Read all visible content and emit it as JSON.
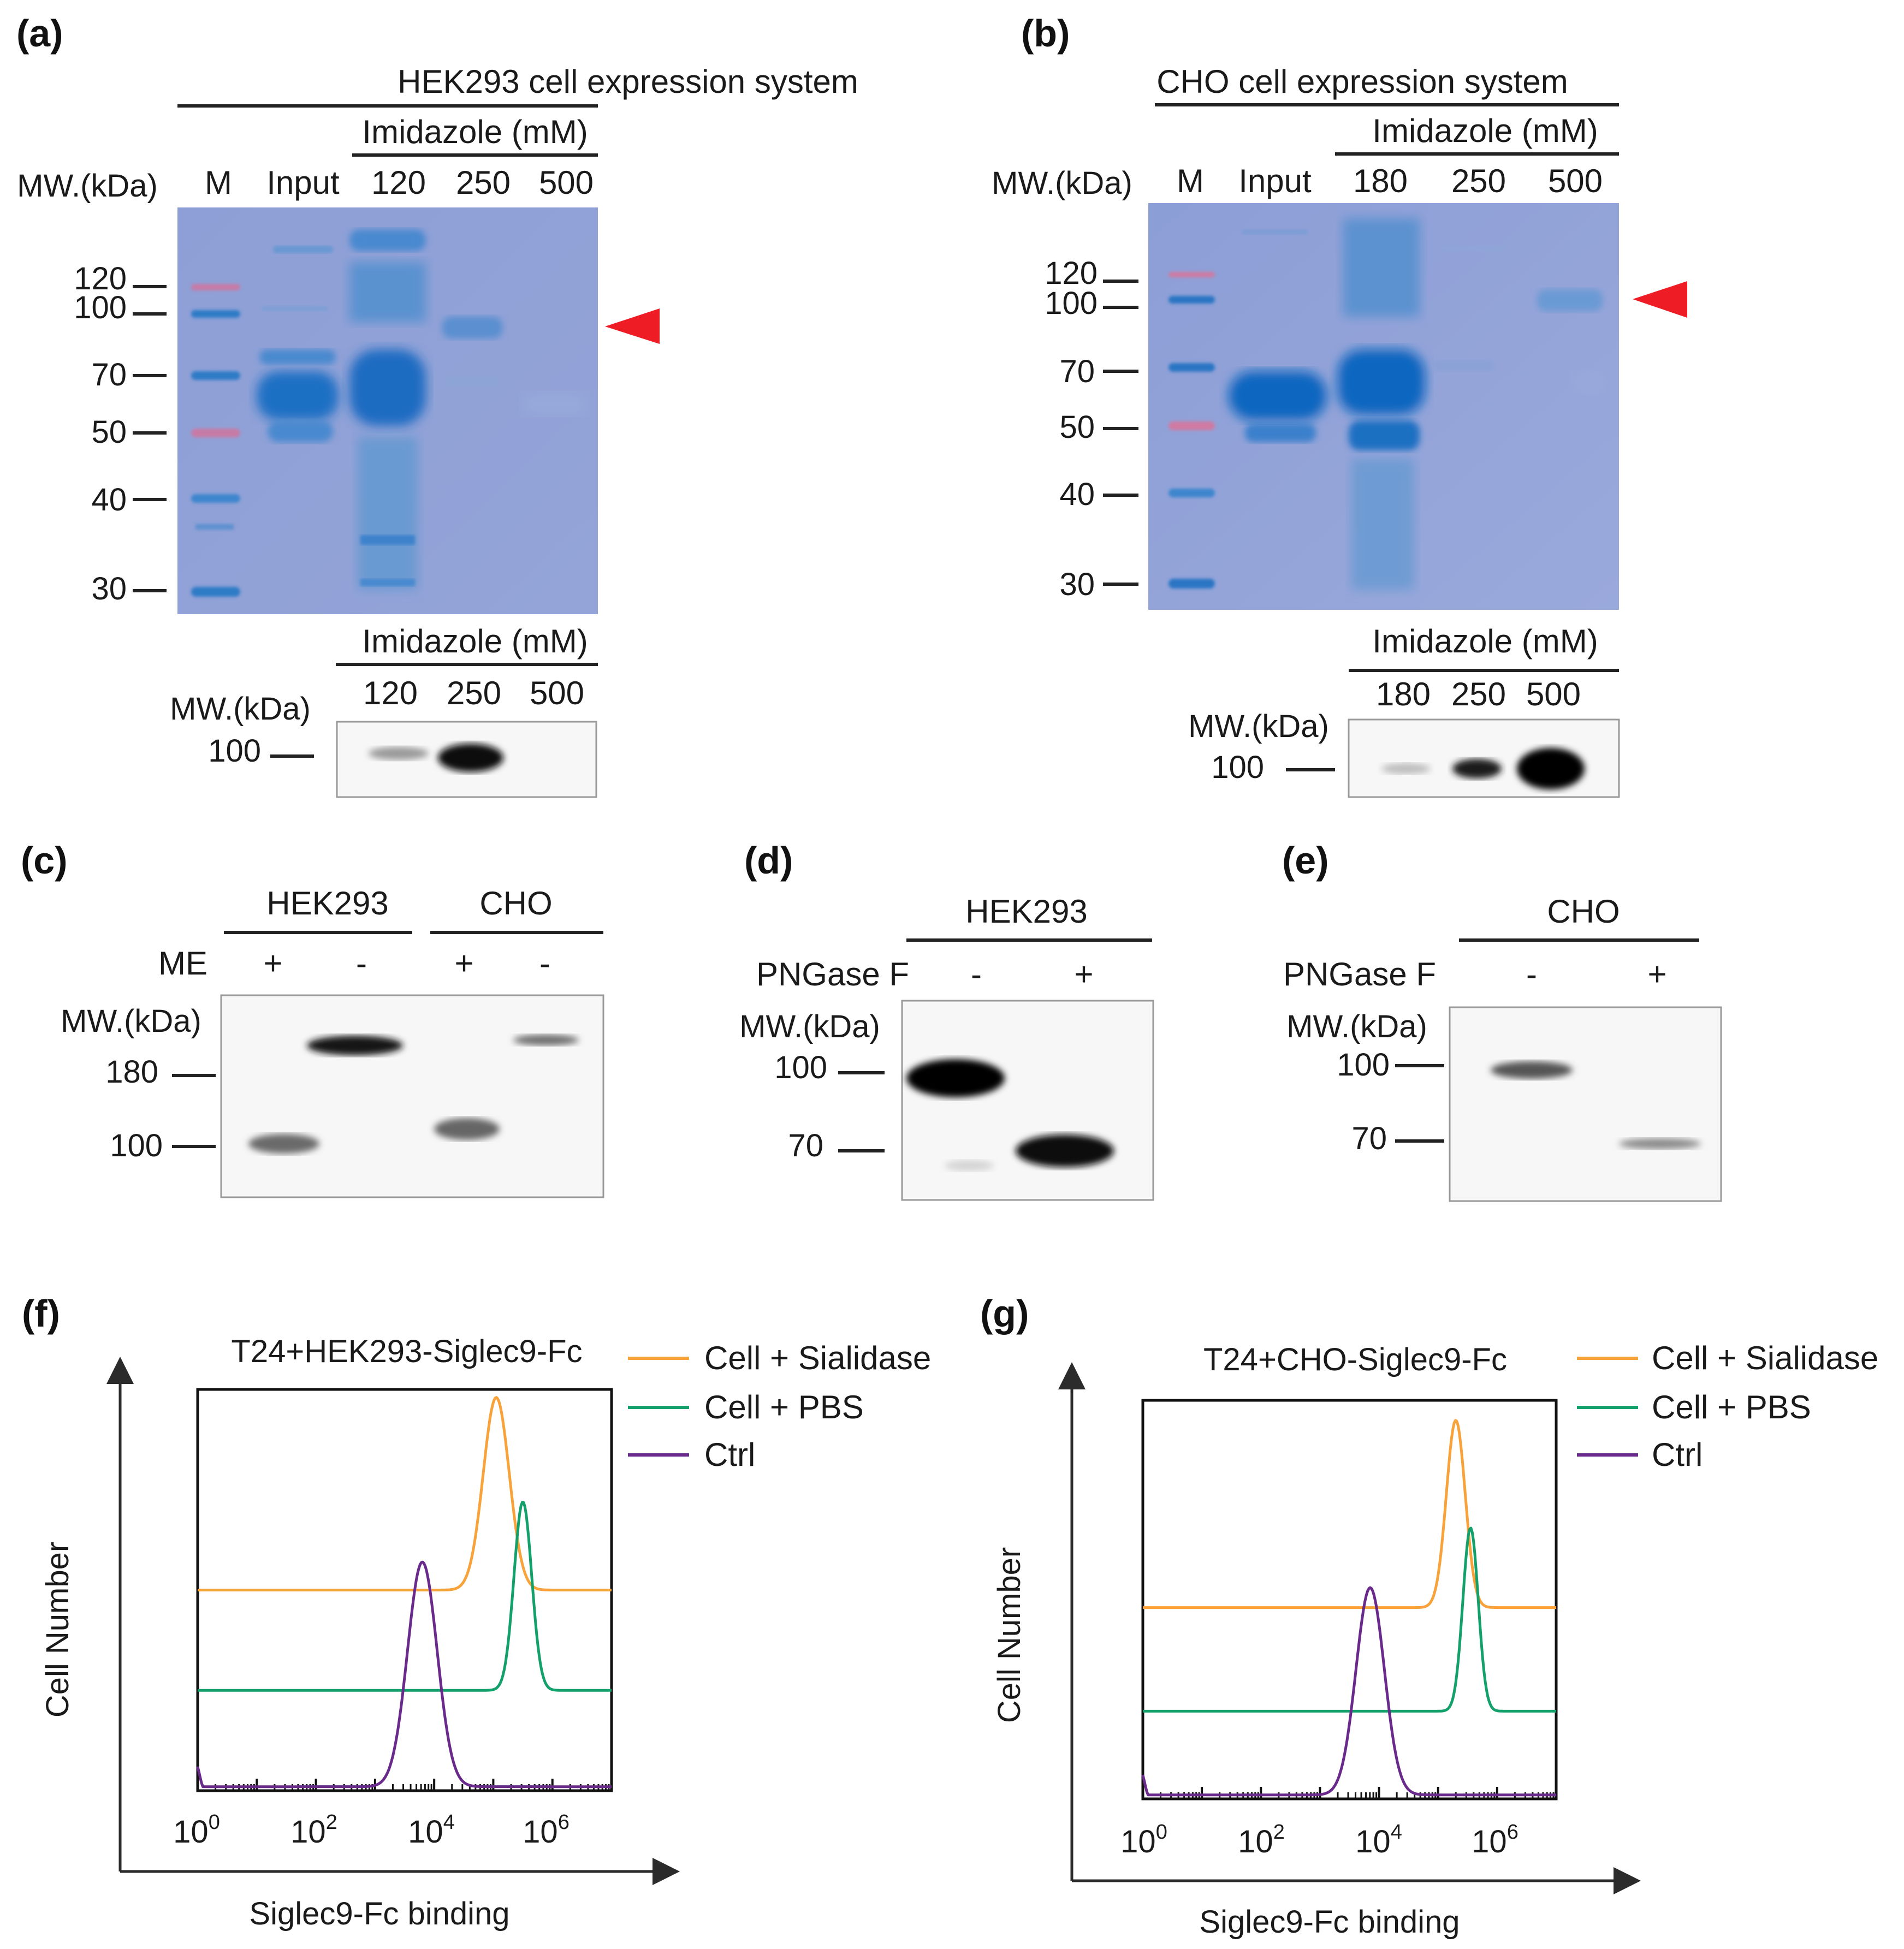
{
  "panels": {
    "a": {
      "tag": "(a)",
      "title": "HEK293 cell expression system",
      "imidazole_label": "Imidazole (mM)",
      "mw_label": "MW.(kDa)",
      "lanes": [
        "M",
        "Input",
        "120",
        "250",
        "500"
      ],
      "markers": [
        "120",
        "100",
        "70",
        "50",
        "40",
        "30"
      ],
      "wb_imidazole_label": "Imidazole (mM)",
      "wb_mw_label": "MW.(kDa)",
      "wb_lanes": [
        "120",
        "250",
        "500"
      ],
      "wb_marker": "100"
    },
    "b": {
      "tag": "(b)",
      "title": "CHO cell expression system",
      "imidazole_label": "Imidazole (mM)",
      "mw_label": "MW.(kDa)",
      "lanes": [
        "M",
        "Input",
        "180",
        "250",
        "500"
      ],
      "markers": [
        "120",
        "100",
        "70",
        "50",
        "40",
        "30"
      ],
      "wb_imidazole_label": "Imidazole (mM)",
      "wb_mw_label": "MW.(kDa)",
      "wb_lanes": [
        "180",
        "250",
        "500"
      ],
      "wb_marker": "100"
    },
    "c": {
      "tag": "(c)",
      "groups": [
        "HEK293",
        "CHO"
      ],
      "row_label": "ME",
      "signs": [
        "+",
        "-",
        "+",
        "-"
      ],
      "mw_label": "MW.(kDa)",
      "markers": [
        "180",
        "100"
      ]
    },
    "d": {
      "tag": "(d)",
      "group": "HEK293",
      "row_label": "PNGase F",
      "signs": [
        "-",
        "+"
      ],
      "mw_label": "MW.(kDa)",
      "markers": [
        "100",
        "70"
      ]
    },
    "e": {
      "tag": "(e)",
      "group": "CHO",
      "row_label": "PNGase F",
      "signs": [
        "-",
        "+"
      ],
      "mw_label": "MW.(kDa)",
      "markers": [
        "100",
        "70"
      ]
    },
    "f": {
      "tag": "(f)",
      "title": "T24+HEK293-Siglec9-Fc",
      "ylabel": "Cell Number",
      "xlabel": "Siglec9-Fc binding",
      "xtick_exponents": [
        "0",
        "2",
        "4",
        "6"
      ]
    },
    "g": {
      "tag": "(g)",
      "title": "T24+CHO-Siglec9-Fc",
      "ylabel": "Cell Number",
      "xlabel": "Siglec9-Fc binding",
      "xtick_exponents": [
        "0",
        "2",
        "4",
        "6"
      ]
    }
  },
  "legend": [
    {
      "label": "Cell + Sialidase",
      "color": "#f7a23b"
    },
    {
      "label": "Cell + PBS",
      "color": "#14a06a"
    },
    {
      "label": "Ctrl",
      "color": "#6a2a8c"
    }
  ],
  "chart_data": [
    {
      "type": "line",
      "title": "T24+HEK293-Siglec9-Fc",
      "xlabel": "Siglec9-Fc binding",
      "ylabel": "Cell Number",
      "xscale": "log10",
      "xlim": [
        0,
        7
      ],
      "ylim": [
        0,
        1
      ],
      "series": [
        {
          "name": "Cell + Sialidase",
          "color": "#f7a23b",
          "baseline": 0.5,
          "peak_log": 5.05,
          "peak_height": 0.98,
          "width": 0.22
        },
        {
          "name": "Cell + PBS",
          "color": "#14a06a",
          "baseline": 0.25,
          "peak_log": 5.5,
          "peak_height": 0.72,
          "width": 0.15
        },
        {
          "name": "Ctrl",
          "color": "#6a2a8c",
          "baseline": 0.01,
          "peak_log": 3.8,
          "peak_height": 0.57,
          "width": 0.25
        }
      ]
    },
    {
      "type": "line",
      "title": "T24+CHO-Siglec9-Fc",
      "xlabel": "Siglec9-Fc binding",
      "ylabel": "Cell Number",
      "xscale": "log10",
      "xlim": [
        0,
        7
      ],
      "ylim": [
        0,
        1
      ],
      "series": [
        {
          "name": "Cell + Sialidase",
          "color": "#f7a23b",
          "baseline": 0.48,
          "peak_log": 5.3,
          "peak_height": 0.95,
          "width": 0.16
        },
        {
          "name": "Cell + PBS",
          "color": "#14a06a",
          "baseline": 0.22,
          "peak_log": 5.55,
          "peak_height": 0.68,
          "width": 0.13
        },
        {
          "name": "Ctrl",
          "color": "#6a2a8c",
          "baseline": 0.01,
          "peak_log": 3.85,
          "peak_height": 0.53,
          "width": 0.24
        }
      ]
    }
  ]
}
